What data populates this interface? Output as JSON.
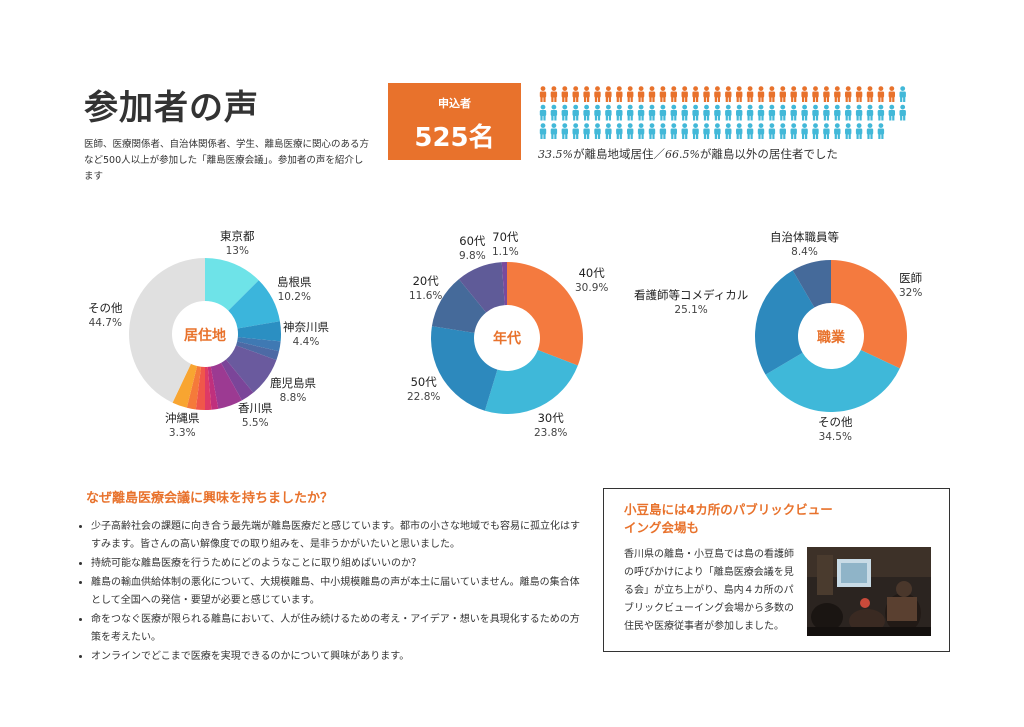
{
  "title": "参加者の声",
  "intro": "医師、医療関係者、自治体関係者、学生、離島医療に関心のある方など500人以上が参加した「離島医療会議」。参加者の声を紹介します",
  "applicants": {
    "label": "申込者",
    "count": "525名"
  },
  "people": {
    "caption_pre": "33.5%",
    "caption_mid": "が離島地域居住／",
    "caption_pct2": "66.5%",
    "caption_post": "が離島以外の居住者でした",
    "total_icons": 100,
    "orange_icons": 33,
    "orange_color": "#e8722c",
    "blue_color": "#42b8d8"
  },
  "chart_data": [
    {
      "type": "pie",
      "title": "居住地",
      "slices": [
        {
          "label": "東京都",
          "value": 13,
          "value_text": "13%",
          "color": "#6ee3e8"
        },
        {
          "label": "島根県",
          "value": 10.2,
          "value_text": "10.2%",
          "color": "#3bb5dc"
        },
        {
          "label": "神奈川県",
          "value": 4.4,
          "value_text": "4.4%",
          "color": "#2b8fc2"
        },
        {
          "label": "",
          "value": 2.2,
          "value_text": "",
          "color": "#3f79b3"
        },
        {
          "label": "",
          "value": 2.0,
          "value_text": "",
          "color": "#4d6aa5"
        },
        {
          "label": "鹿児島県",
          "value": 8.8,
          "value_text": "8.8%",
          "color": "#6a5a9e"
        },
        {
          "label": "",
          "value": 3.0,
          "value_text": "",
          "color": "#7b4599"
        },
        {
          "label": "香川県",
          "value": 5.5,
          "value_text": "5.5%",
          "color": "#9c3a92"
        },
        {
          "label": "",
          "value": 1.5,
          "value_text": "",
          "color": "#c0307d"
        },
        {
          "label": "",
          "value": 1.4,
          "value_text": "",
          "color": "#de3a66"
        },
        {
          "label": "",
          "value": 2.0,
          "value_text": "",
          "color": "#f0574a"
        },
        {
          "label": "",
          "value": 2.0,
          "value_text": "",
          "color": "#f57a3a"
        },
        {
          "label": "沖縄県",
          "value": 3.3,
          "value_text": "3.3%",
          "color": "#f8a531"
        },
        {
          "label": "その他",
          "value": 44.7,
          "value_text": "44.7%",
          "color": "#e0e0e0"
        }
      ]
    },
    {
      "type": "pie",
      "title": "年代",
      "slices": [
        {
          "label": "40代",
          "value": 30.9,
          "value_text": "30.9%",
          "color": "#f47a3f"
        },
        {
          "label": "30代",
          "value": 23.8,
          "value_text": "23.8%",
          "color": "#3fb8d9"
        },
        {
          "label": "50代",
          "value": 22.8,
          "value_text": "22.8%",
          "color": "#2d89bd"
        },
        {
          "label": "20代",
          "value": 11.6,
          "value_text": "11.6%",
          "color": "#456a9a"
        },
        {
          "label": "60代",
          "value": 9.8,
          "value_text": "9.8%",
          "color": "#5f5b98"
        },
        {
          "label": "70代",
          "value": 1.1,
          "value_text": "1.1%",
          "color": "#7a4a9c"
        }
      ]
    },
    {
      "type": "pie",
      "title": "職業",
      "slices": [
        {
          "label": "医師",
          "value": 32,
          "value_text": "32%",
          "color": "#f47a3f"
        },
        {
          "label": "その他",
          "value": 34.5,
          "value_text": "34.5%",
          "color": "#3fb8d9"
        },
        {
          "label": "看護師等コメディカル",
          "value": 25.1,
          "value_text": "25.1%",
          "color": "#2d89bd"
        },
        {
          "label": "自治体職員等",
          "value": 8.4,
          "value_text": "8.4%",
          "color": "#456a9a"
        }
      ]
    }
  ],
  "question": {
    "title": "なぜ離島医療会議に興味を持ちましたか？",
    "items": [
      "少子高齢社会の課題に向き合う最先端が離島医療だと感じています。都市の小さな地域でも容易に孤立化はすすみます。皆さんの高い解像度での取り組みを、是非うかがいたいと思いました。",
      "持続可能な離島医療を行うためにどのようなことに取り組めばいいのか？",
      "離島の輸血供給体制の悪化について、大規模離島、中小規模離島の声が本土に届いていません。離島の集合体として全国への発信・要望が必要と感じています。",
      "命をつなぐ医療が限られる離島において、人が住み続けるための考え・アイデア・想いを具現化するための方策を考えたい。",
      "オンラインでどこまで医療を実現できるのかについて興味があります。"
    ]
  },
  "box": {
    "title": "小豆島には4カ所のパブリックビューイング会場も",
    "text": "香川県の離島・小豆島では島の看護師の呼びかけにより「離島医療会議を見る会」が立ち上がり、島内４カ所のパブリックビューイング会場から多数の住民や医療従事者が参加しました。"
  }
}
